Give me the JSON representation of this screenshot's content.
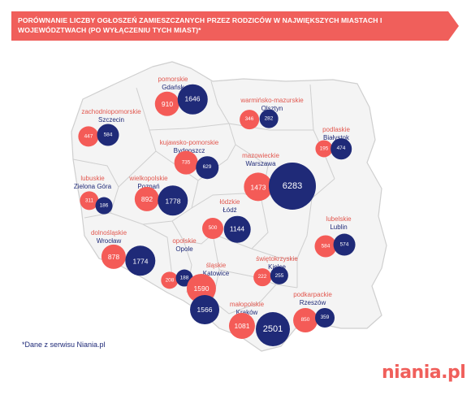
{
  "title": "PORÓWNANIE LICZBY OGŁOSZEŃ ZAMIESZCZANYCH PRZEZ RODZICÓW W NAJWIĘKSZYCH MIASTACH I WOJEWÓDZTWACH (PO WYŁĄCZENIU TYCH MIAST)*",
  "source_note": "*Dane z serwisu Niania.pl",
  "logo_text": "niania.pl",
  "colors": {
    "region_bubble": "#f45b57",
    "city_bubble": "#1f2a78",
    "map_fill": "#f4f4f4",
    "map_border": "#c8c8c8"
  },
  "regions": [
    {
      "region": "pomorskie",
      "city": "Gdańsk",
      "region_value": "910",
      "city_value": "1646"
    },
    {
      "region": "warmińsko-mazurskie",
      "city": "Olsztyn",
      "region_value": "346",
      "city_value": "282"
    },
    {
      "region": "zachodniopomorskie",
      "city": "Szczecin",
      "region_value": "447",
      "city_value": "584"
    },
    {
      "region": "podlaskie",
      "city": "Białystok",
      "region_value": "195",
      "city_value": "474"
    },
    {
      "region": "kujawsko-pomorskie",
      "city": "Bydgoszcz",
      "region_value": "735",
      "city_value": "629"
    },
    {
      "region": "mazowieckie",
      "city": "Warszawa",
      "region_value": "1473",
      "city_value": "6283"
    },
    {
      "region": "lubuskie",
      "city": "Zielona Góra",
      "region_value": "311",
      "city_value": "186"
    },
    {
      "region": "wielkopolskie",
      "city": "Poznań",
      "region_value": "892",
      "city_value": "1778"
    },
    {
      "region": "łódzkie",
      "city": "Łódź",
      "region_value": "500",
      "city_value": "1144"
    },
    {
      "region": "lubelskie",
      "city": "Lublin",
      "region_value": "584",
      "city_value": "574"
    },
    {
      "region": "dolnośląskie",
      "city": "Wrocław",
      "region_value": "878",
      "city_value": "1774"
    },
    {
      "region": "opolskie",
      "city": "Opole",
      "region_value": "208",
      "city_value": "188"
    },
    {
      "region": "świętokrzyskie",
      "city": "Kielce",
      "region_value": "222",
      "city_value": "255"
    },
    {
      "region": "śląskie",
      "city": "Katowice",
      "region_value": "1590",
      "city_value": "1566"
    },
    {
      "region": "małopolskie",
      "city": "Kraków",
      "region_value": "1081",
      "city_value": "2501"
    },
    {
      "region": "podkarpackie",
      "city": "Rzeszów",
      "region_value": "850",
      "city_value": "359"
    }
  ]
}
